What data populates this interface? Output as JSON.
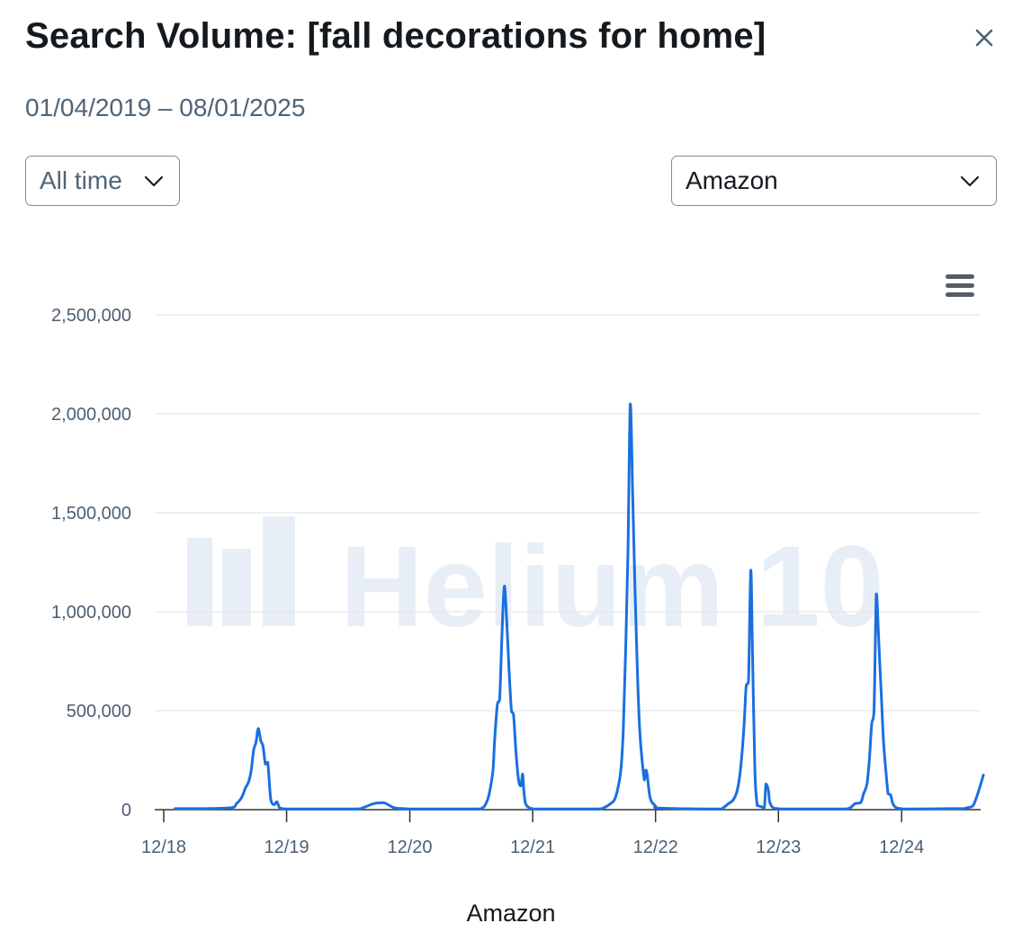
{
  "header": {
    "title": "Search Volume: [fall decorations for home]",
    "date_range": "01/04/2019 – 08/01/2025",
    "close_icon": "close-icon"
  },
  "filters": {
    "range": {
      "selected": "All time",
      "icon": "chevron-down-icon"
    },
    "marketplace": {
      "selected": "Amazon",
      "icon": "chevron-down-icon"
    }
  },
  "chart_menu": {
    "icon": "hamburger-menu-icon"
  },
  "watermark": {
    "text": "Helium 10"
  },
  "colors": {
    "line": "#1a6fe0",
    "grid": "#e4e7eb",
    "axis": "#333333",
    "watermark": "#e8eef6"
  },
  "chart_data": {
    "type": "line",
    "xlabel": "Amazon",
    "ylabel": "",
    "ylim": [
      0,
      2500000
    ],
    "yticks": [
      0,
      500000,
      1000000,
      1500000,
      2000000,
      2500000
    ],
    "ytick_labels": [
      "0",
      "500,000",
      "1,000,000",
      "1,500,000",
      "2,000,000",
      "2,500,000"
    ],
    "xticks": [
      "2018-12-01",
      "2019-12-01",
      "2020-12-01",
      "2021-12-01",
      "2022-12-01",
      "2023-12-01",
      "2024-12-01"
    ],
    "xtick_labels": [
      "12/18",
      "12/19",
      "12/20",
      "12/21",
      "12/22",
      "12/23",
      "12/24"
    ],
    "grid": true,
    "series": [
      {
        "name": "Amazon",
        "x": [
          "2019-01-04",
          "2019-04-01",
          "2019-06-20",
          "2019-07-05",
          "2019-07-20",
          "2019-08-01",
          "2019-08-10",
          "2019-08-18",
          "2019-08-25",
          "2019-09-01",
          "2019-09-08",
          "2019-09-15",
          "2019-09-22",
          "2019-09-29",
          "2019-10-06",
          "2019-10-15",
          "2019-10-25",
          "2019-11-02",
          "2019-11-10",
          "2019-11-20",
          "2019-12-15",
          "2020-06-15",
          "2020-07-15",
          "2020-08-15",
          "2020-09-15",
          "2020-10-15",
          "2020-11-15",
          "2020-12-15",
          "2021-06-10",
          "2021-07-05",
          "2021-07-15",
          "2021-07-25",
          "2021-08-05",
          "2021-08-10",
          "2021-08-18",
          "2021-08-25",
          "2021-09-01",
          "2021-09-08",
          "2021-09-15",
          "2021-09-22",
          "2021-09-29",
          "2021-10-05",
          "2021-10-12",
          "2021-10-20",
          "2021-10-27",
          "2021-11-01",
          "2021-11-05",
          "2021-11-10",
          "2021-11-20",
          "2021-12-01",
          "2021-12-20",
          "2022-06-01",
          "2022-07-01",
          "2022-07-20",
          "2022-08-01",
          "2022-08-10",
          "2022-08-20",
          "2022-08-27",
          "2022-09-03",
          "2022-09-10",
          "2022-09-17",
          "2022-09-24",
          "2022-10-01",
          "2022-10-08",
          "2022-10-15",
          "2022-10-22",
          "2022-10-29",
          "2022-11-02",
          "2022-11-06",
          "2022-11-15",
          "2022-11-30",
          "2022-12-15",
          "2023-06-01",
          "2023-06-20",
          "2023-07-05",
          "2023-07-20",
          "2023-08-01",
          "2023-08-10",
          "2023-08-20",
          "2023-08-27",
          "2023-09-03",
          "2023-09-10",
          "2023-09-15",
          "2023-09-22",
          "2023-09-29",
          "2023-10-01",
          "2023-10-10",
          "2023-10-20",
          "2023-10-25",
          "2023-11-01",
          "2023-11-05",
          "2023-11-15",
          "2023-12-01",
          "2023-12-20",
          "2024-06-01",
          "2024-07-01",
          "2024-07-15",
          "2024-08-01",
          "2024-08-10",
          "2024-08-20",
          "2024-08-27",
          "2024-09-03",
          "2024-09-10",
          "2024-09-17",
          "2024-09-24",
          "2024-10-01",
          "2024-10-08",
          "2024-10-15",
          "2024-10-22",
          "2024-10-29",
          "2024-11-05",
          "2024-11-15",
          "2024-11-30",
          "2024-12-15",
          "2025-05-01",
          "2025-06-01",
          "2025-06-15",
          "2025-07-01",
          "2025-07-15",
          "2025-08-01"
        ],
        "y": [
          5000,
          5000,
          10000,
          30000,
          60000,
          110000,
          140000,
          200000,
          300000,
          340000,
          410000,
          350000,
          320000,
          230000,
          240000,
          50000,
          25000,
          40000,
          10000,
          5000,
          3000,
          3000,
          10000,
          30000,
          35000,
          10000,
          5000,
          3000,
          3000,
          10000,
          30000,
          80000,
          200000,
          350000,
          530000,
          560000,
          900000,
          1130000,
          950000,
          700000,
          500000,
          480000,
          300000,
          150000,
          120000,
          180000,
          90000,
          30000,
          10000,
          5000,
          3000,
          3000,
          10000,
          30000,
          50000,
          100000,
          200000,
          400000,
          800000,
          1300000,
          2050000,
          1600000,
          1100000,
          700000,
          400000,
          250000,
          150000,
          200000,
          180000,
          60000,
          20000,
          8000,
          3000,
          10000,
          30000,
          50000,
          100000,
          200000,
          400000,
          620000,
          650000,
          1210000,
          800000,
          200000,
          20000,
          20000,
          15000,
          10000,
          130000,
          100000,
          40000,
          10000,
          5000,
          3000,
          3000,
          10000,
          30000,
          35000,
          80000,
          130000,
          250000,
          430000,
          500000,
          1090000,
          850000,
          600000,
          350000,
          200000,
          80000,
          75000,
          30000,
          10000,
          5000,
          3000,
          5000,
          5000,
          10000,
          20000,
          80000,
          175000
        ]
      }
    ]
  }
}
